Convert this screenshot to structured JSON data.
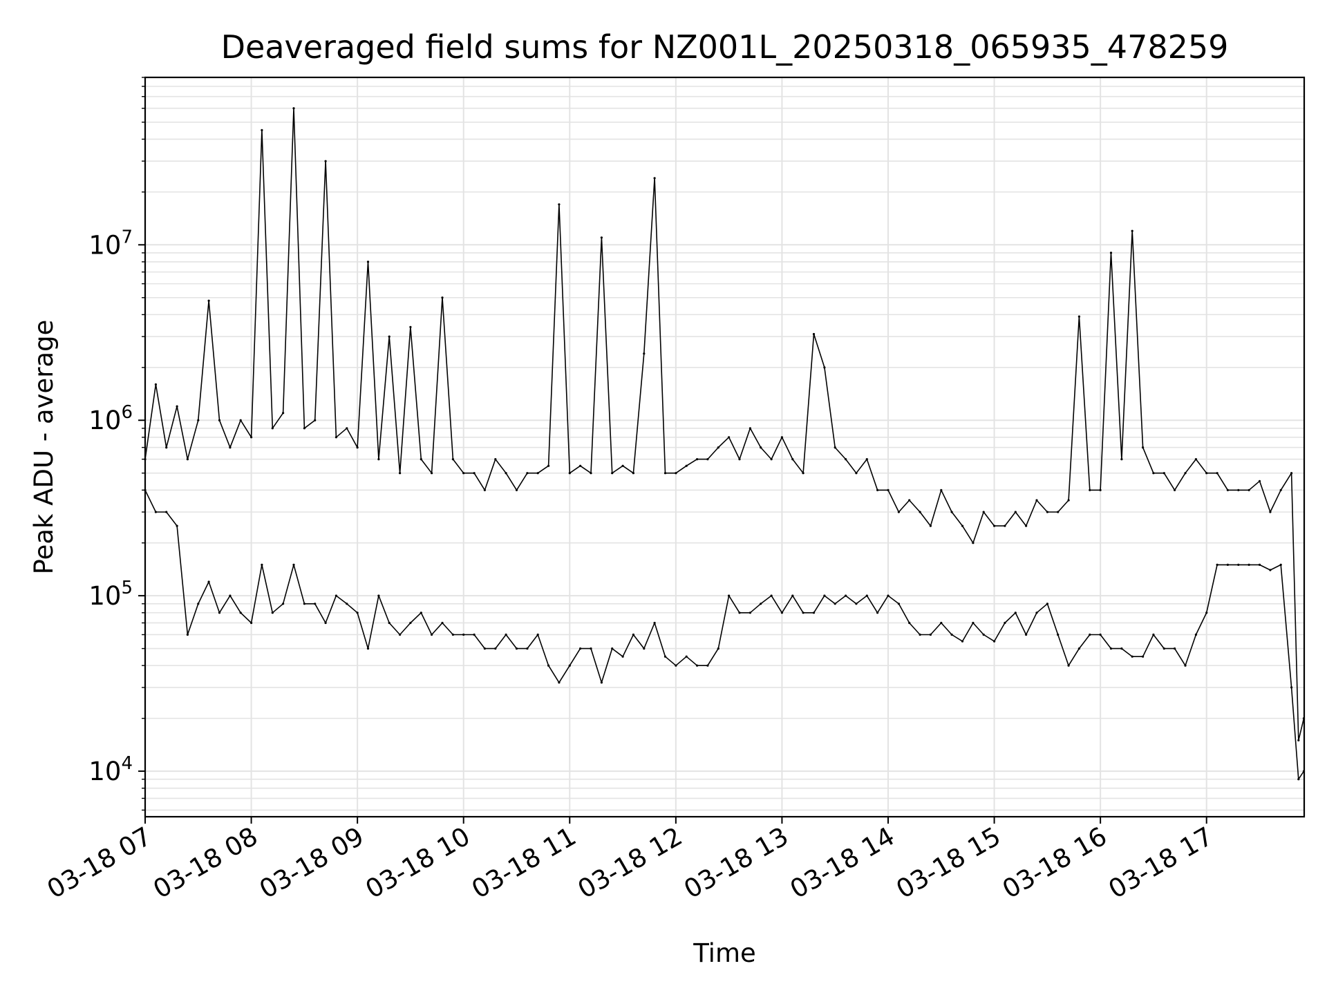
{
  "chart_data": {
    "type": "line",
    "title": "Deaveraged field sums for NZ001L_20250318_065935_478259",
    "xlabel": "Time",
    "ylabel": "Peak ADU - average",
    "yscale": "log",
    "ylim": [
      5500,
      90000000
    ],
    "xlim_hours": [
      7.0,
      17.92
    ],
    "grid": true,
    "line_color": "#000000",
    "grid_color": "#e3e3e3",
    "x_ticks": [
      {
        "label": "03-18 07",
        "hour": 7
      },
      {
        "label": "03-18 08",
        "hour": 8
      },
      {
        "label": "03-18 09",
        "hour": 9
      },
      {
        "label": "03-18 10",
        "hour": 10
      },
      {
        "label": "03-18 11",
        "hour": 11
      },
      {
        "label": "03-18 12",
        "hour": 12
      },
      {
        "label": "03-18 13",
        "hour": 13
      },
      {
        "label": "03-18 14",
        "hour": 14
      },
      {
        "label": "03-18 15",
        "hour": 15
      },
      {
        "label": "03-18 16",
        "hour": 16
      },
      {
        "label": "03-18 17",
        "hour": 17
      }
    ],
    "y_ticks": [
      {
        "base": "10",
        "exp": "4",
        "value": 10000
      },
      {
        "base": "10",
        "exp": "5",
        "value": 100000
      },
      {
        "base": "10",
        "exp": "6",
        "value": 1000000
      },
      {
        "base": "10",
        "exp": "7",
        "value": 10000000
      }
    ],
    "series": [
      {
        "x": [
          "03-18 07:00",
          "03-18 07:06",
          "03-18 07:12",
          "03-18 07:18",
          "03-18 07:24",
          "03-18 07:30",
          "03-18 07:36",
          "03-18 07:42",
          "03-18 07:48",
          "03-18 07:54",
          "03-18 08:00",
          "03-18 08:06",
          "03-18 08:12",
          "03-18 08:18",
          "03-18 08:24",
          "03-18 08:30",
          "03-18 08:36",
          "03-18 08:42",
          "03-18 08:48",
          "03-18 08:54",
          "03-18 09:00",
          "03-18 09:06",
          "03-18 09:12",
          "03-18 09:18",
          "03-18 09:24",
          "03-18 09:30",
          "03-18 09:36",
          "03-18 09:42",
          "03-18 09:48",
          "03-18 09:54",
          "03-18 10:00",
          "03-18 10:06",
          "03-18 10:12",
          "03-18 10:18",
          "03-18 10:24",
          "03-18 10:30",
          "03-18 10:36",
          "03-18 10:42",
          "03-18 10:48",
          "03-18 10:54",
          "03-18 11:00",
          "03-18 11:06",
          "03-18 11:12",
          "03-18 11:18",
          "03-18 11:24",
          "03-18 11:30",
          "03-18 11:36",
          "03-18 11:42",
          "03-18 11:48",
          "03-18 11:54",
          "03-18 12:00",
          "03-18 12:06",
          "03-18 12:12",
          "03-18 12:18",
          "03-18 12:24",
          "03-18 12:30",
          "03-18 12:36",
          "03-18 12:42",
          "03-18 12:48",
          "03-18 12:54",
          "03-18 13:00",
          "03-18 13:06",
          "03-18 13:12",
          "03-18 13:18",
          "03-18 13:24",
          "03-18 13:30",
          "03-18 13:36",
          "03-18 13:42",
          "03-18 13:48",
          "03-18 13:54",
          "03-18 14:00",
          "03-18 14:06",
          "03-18 14:12",
          "03-18 14:18",
          "03-18 14:24",
          "03-18 14:30",
          "03-18 14:36",
          "03-18 14:42",
          "03-18 14:48",
          "03-18 14:54",
          "03-18 15:00",
          "03-18 15:06",
          "03-18 15:12",
          "03-18 15:18",
          "03-18 15:24",
          "03-18 15:30",
          "03-18 15:36",
          "03-18 15:42",
          "03-18 15:48",
          "03-18 15:54",
          "03-18 16:00",
          "03-18 16:06",
          "03-18 16:12",
          "03-18 16:18",
          "03-18 16:24",
          "03-18 16:30",
          "03-18 16:36",
          "03-18 16:42",
          "03-18 16:48",
          "03-18 16:54",
          "03-18 17:00",
          "03-18 17:06",
          "03-18 17:12",
          "03-18 17:18",
          "03-18 17:24",
          "03-18 17:30",
          "03-18 17:36",
          "03-18 17:42",
          "03-18 17:48",
          "03-18 17:52",
          "03-18 17:55"
        ],
        "y": [
          600000,
          1600000,
          700000,
          1200000,
          600000,
          1000000,
          4800000,
          1000000,
          700000,
          1000000,
          800000,
          45000000,
          900000,
          1100000,
          60000000,
          900000,
          1000000,
          30000000,
          800000,
          900000,
          700000,
          8000000,
          600000,
          3000000,
          500000,
          3400000,
          600000,
          500000,
          5000000,
          600000,
          500000,
          500000,
          400000,
          600000,
          500000,
          400000,
          500000,
          500000,
          550000,
          17000000,
          500000,
          550000,
          500000,
          11000000,
          500000,
          550000,
          500000,
          2400000,
          24000000,
          500000,
          500000,
          550000,
          600000,
          600000,
          700000,
          800000,
          600000,
          900000,
          700000,
          600000,
          800000,
          600000,
          500000,
          3100000,
          2000000,
          700000,
          600000,
          500000,
          600000,
          400000,
          400000,
          300000,
          350000,
          300000,
          250000,
          400000,
          300000,
          250000,
          200000,
          300000,
          250000,
          250000,
          300000,
          250000,
          350000,
          300000,
          300000,
          350000,
          3900000,
          400000,
          400000,
          9000000,
          600000,
          12000000,
          700000,
          500000,
          500000,
          400000,
          500000,
          600000,
          500000,
          500000,
          400000,
          400000,
          400000,
          450000,
          300000,
          400000,
          500000,
          15000,
          20000
        ]
      },
      {
        "x": [
          "03-18 07:00",
          "03-18 07:06",
          "03-18 07:12",
          "03-18 07:18",
          "03-18 07:24",
          "03-18 07:30",
          "03-18 07:36",
          "03-18 07:42",
          "03-18 07:48",
          "03-18 07:54",
          "03-18 08:00",
          "03-18 08:06",
          "03-18 08:12",
          "03-18 08:18",
          "03-18 08:24",
          "03-18 08:30",
          "03-18 08:36",
          "03-18 08:42",
          "03-18 08:48",
          "03-18 08:54",
          "03-18 09:00",
          "03-18 09:06",
          "03-18 09:12",
          "03-18 09:18",
          "03-18 09:24",
          "03-18 09:30",
          "03-18 09:36",
          "03-18 09:42",
          "03-18 09:48",
          "03-18 09:54",
          "03-18 10:00",
          "03-18 10:06",
          "03-18 10:12",
          "03-18 10:18",
          "03-18 10:24",
          "03-18 10:30",
          "03-18 10:36",
          "03-18 10:42",
          "03-18 10:48",
          "03-18 10:54",
          "03-18 11:00",
          "03-18 11:06",
          "03-18 11:12",
          "03-18 11:18",
          "03-18 11:24",
          "03-18 11:30",
          "03-18 11:36",
          "03-18 11:42",
          "03-18 11:48",
          "03-18 11:54",
          "03-18 12:00",
          "03-18 12:06",
          "03-18 12:12",
          "03-18 12:18",
          "03-18 12:24",
          "03-18 12:30",
          "03-18 12:36",
          "03-18 12:42",
          "03-18 12:48",
          "03-18 12:54",
          "03-18 13:00",
          "03-18 13:06",
          "03-18 13:12",
          "03-18 13:18",
          "03-18 13:24",
          "03-18 13:30",
          "03-18 13:36",
          "03-18 13:42",
          "03-18 13:48",
          "03-18 13:54",
          "03-18 14:00",
          "03-18 14:06",
          "03-18 14:12",
          "03-18 14:18",
          "03-18 14:24",
          "03-18 14:30",
          "03-18 14:36",
          "03-18 14:42",
          "03-18 14:48",
          "03-18 14:54",
          "03-18 15:00",
          "03-18 15:06",
          "03-18 15:12",
          "03-18 15:18",
          "03-18 15:24",
          "03-18 15:30",
          "03-18 15:36",
          "03-18 15:42",
          "03-18 15:48",
          "03-18 15:54",
          "03-18 16:00",
          "03-18 16:06",
          "03-18 16:12",
          "03-18 16:18",
          "03-18 16:24",
          "03-18 16:30",
          "03-18 16:36",
          "03-18 16:42",
          "03-18 16:48",
          "03-18 16:54",
          "03-18 17:00",
          "03-18 17:06",
          "03-18 17:12",
          "03-18 17:18",
          "03-18 17:24",
          "03-18 17:30",
          "03-18 17:36",
          "03-18 17:42",
          "03-18 17:48",
          "03-18 17:52",
          "03-18 17:55"
        ],
        "y": [
          400000,
          300000,
          300000,
          250000,
          60000,
          90000,
          120000,
          80000,
          100000,
          80000,
          70000,
          150000,
          80000,
          90000,
          150000,
          90000,
          90000,
          70000,
          100000,
          90000,
          80000,
          50000,
          100000,
          70000,
          60000,
          70000,
          80000,
          60000,
          70000,
          60000,
          60000,
          60000,
          50000,
          50000,
          60000,
          50000,
          50000,
          60000,
          40000,
          32000,
          40000,
          50000,
          50000,
          32000,
          50000,
          45000,
          60000,
          50000,
          70000,
          45000,
          40000,
          45000,
          40000,
          40000,
          50000,
          100000,
          80000,
          80000,
          90000,
          100000,
          80000,
          100000,
          80000,
          80000,
          100000,
          90000,
          100000,
          90000,
          100000,
          80000,
          100000,
          90000,
          70000,
          60000,
          60000,
          70000,
          60000,
          55000,
          70000,
          60000,
          55000,
          70000,
          80000,
          60000,
          80000,
          90000,
          60000,
          40000,
          50000,
          60000,
          60000,
          50000,
          50000,
          45000,
          45000,
          60000,
          50000,
          50000,
          40000,
          60000,
          80000,
          150000,
          150000,
          150000,
          150000,
          150000,
          140000,
          150000,
          30000,
          9000,
          10000
        ]
      }
    ]
  }
}
